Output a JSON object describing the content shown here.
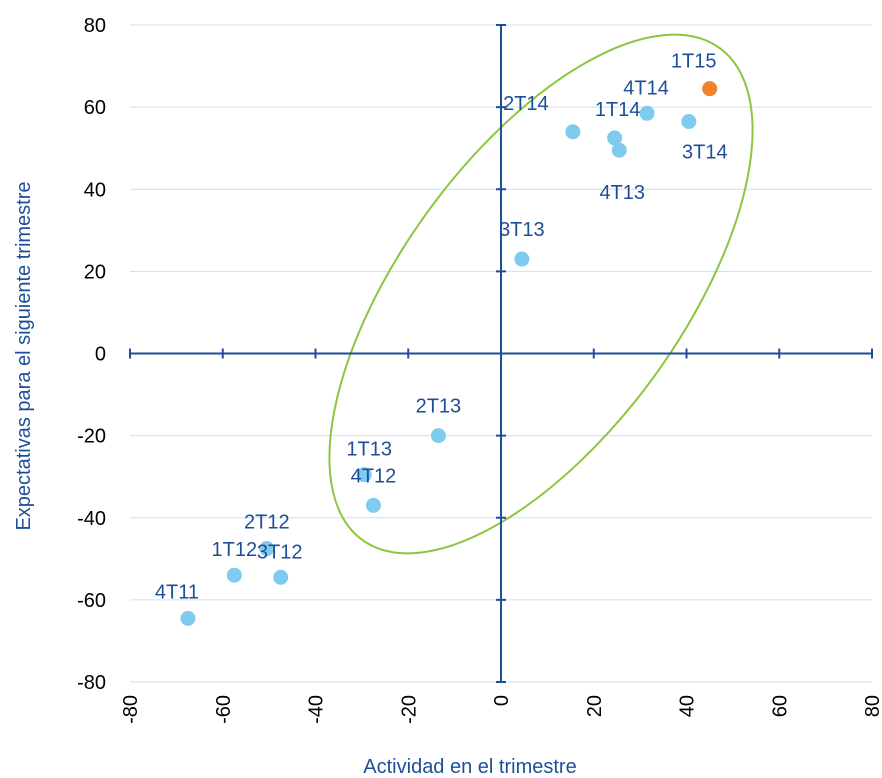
{
  "chart_data": {
    "type": "scatter",
    "xlabel": "Actividad en el trimestre",
    "ylabel": "Expectativas para el siguiente trimestre",
    "xlim": [
      -80,
      80
    ],
    "ylim": [
      -80,
      80
    ],
    "x_ticks": [
      "-80",
      "-60",
      "-40",
      "-20",
      "0",
      "20",
      "40",
      "60",
      "80"
    ],
    "y_ticks": [
      "80",
      "60",
      "40",
      "20",
      "0",
      "-20",
      "-40",
      "-60",
      "-80"
    ],
    "grid": "horizontal",
    "colors": {
      "point": "#7ecbef",
      "highlight": "#f0822a",
      "ellipse": "#8cc63f",
      "axis": "#1f4e99",
      "grid": "#c6e3f3"
    },
    "points": [
      {
        "label": "4T11",
        "x": -67.5,
        "y": -64.5,
        "highlight": false
      },
      {
        "label": "1T12",
        "x": -57.5,
        "y": -54.0,
        "highlight": false
      },
      {
        "label": "2T12",
        "x": -50.5,
        "y": -47.5,
        "highlight": false
      },
      {
        "label": "3T12",
        "x": -47.5,
        "y": -54.5,
        "highlight": false
      },
      {
        "label": "4T12",
        "x": -27.5,
        "y": -37.0,
        "highlight": false
      },
      {
        "label": "1T13",
        "x": -29.5,
        "y": -29.5,
        "highlight": false
      },
      {
        "label": "2T13",
        "x": -13.5,
        "y": -20.0,
        "highlight": false
      },
      {
        "label": "3T13",
        "x": 4.5,
        "y": 23.0,
        "highlight": false
      },
      {
        "label": "4T13",
        "x": 25.5,
        "y": 49.5,
        "highlight": false
      },
      {
        "label": "1T14",
        "x": 24.5,
        "y": 52.5,
        "highlight": false
      },
      {
        "label": "2T14",
        "x": 15.5,
        "y": 54.0,
        "highlight": false
      },
      {
        "label": "3T14",
        "x": 40.5,
        "y": 56.5,
        "highlight": false
      },
      {
        "label": "4T14",
        "x": 31.5,
        "y": 58.5,
        "highlight": false
      },
      {
        "label": "1T15",
        "x": 45.0,
        "y": 64.5,
        "highlight": true
      }
    ]
  }
}
